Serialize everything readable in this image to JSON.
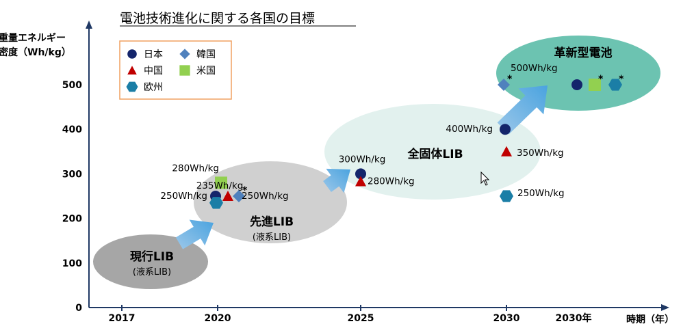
{
  "chart_data": {
    "type": "scatter",
    "title": "電池技術進化に関する各国の目標",
    "ylabel_line1": "重量エネルギー",
    "ylabel_line2": "密度（Wh/kg）",
    "xlabel": "時期（年）",
    "ylim": [
      0,
      500
    ],
    "yticks": [
      "0",
      "100",
      "200",
      "300",
      "400",
      "500"
    ],
    "xticks": [
      "2017",
      "2020",
      "2025",
      "2030",
      "2030年"
    ],
    "legend": {
      "placement": "top-left",
      "entries": [
        {
          "name": "日本",
          "marker": "circle",
          "color": "#14256b"
        },
        {
          "name": "韓国",
          "marker": "diamond",
          "color": "#4f81bd"
        },
        {
          "name": "中国",
          "marker": "triangle",
          "color": "#c00000"
        },
        {
          "name": "米国",
          "marker": "square",
          "color": "#92d050"
        },
        {
          "name": "欧州",
          "marker": "hexagon",
          "color": "#1b7ea6"
        }
      ]
    },
    "stages": [
      {
        "title": "現行LIB",
        "subtitle": "(液系LIB)",
        "color": "#a6a6a6"
      },
      {
        "title": "先進LIB",
        "subtitle": "(液系LIB)",
        "color": "#d0d0d0"
      },
      {
        "title": "全固体LIB",
        "subtitle": "",
        "color": "#e2f1ee"
      },
      {
        "title": "革新型電池",
        "subtitle": "",
        "color": "#6cc3b1"
      }
    ],
    "points": [
      {
        "country": "日本",
        "x": "2020",
        "y": 250,
        "label": "250Wh/kg"
      },
      {
        "country": "米国",
        "x": "2020",
        "y": 280,
        "label": "280Wh/kg"
      },
      {
        "country": "欧州",
        "x": "2020",
        "y": 235,
        "label": "235Wh/kg"
      },
      {
        "country": "中国",
        "x": "2020",
        "y": 250,
        "label": ""
      },
      {
        "country": "韓国",
        "x": "2020",
        "y": 250,
        "label": "250Wh/kg",
        "star": "*"
      },
      {
        "country": "日本",
        "x": "2025",
        "y": 300,
        "label": "300Wh/kg"
      },
      {
        "country": "中国",
        "x": "2025",
        "y": 280,
        "label": "280Wh/kg"
      },
      {
        "country": "日本",
        "x": "2030",
        "y": 400,
        "label": "400Wh/kg"
      },
      {
        "country": "中国",
        "x": "2030",
        "y": 350,
        "label": "350Wh/kg"
      },
      {
        "country": "欧州",
        "x": "2030",
        "y": 250,
        "label": "250Wh/kg"
      },
      {
        "country": "韓国",
        "x": "2030",
        "y": 500,
        "label": "500Wh/kg",
        "star": "*"
      },
      {
        "country": "日本",
        "x": "2030年",
        "y": 500,
        "label": ""
      },
      {
        "country": "米国",
        "x": "2030年",
        "y": 500,
        "label": "",
        "star": "*"
      },
      {
        "country": "欧州",
        "x": "2030年",
        "y": 500,
        "label": "",
        "star": "*"
      }
    ]
  }
}
